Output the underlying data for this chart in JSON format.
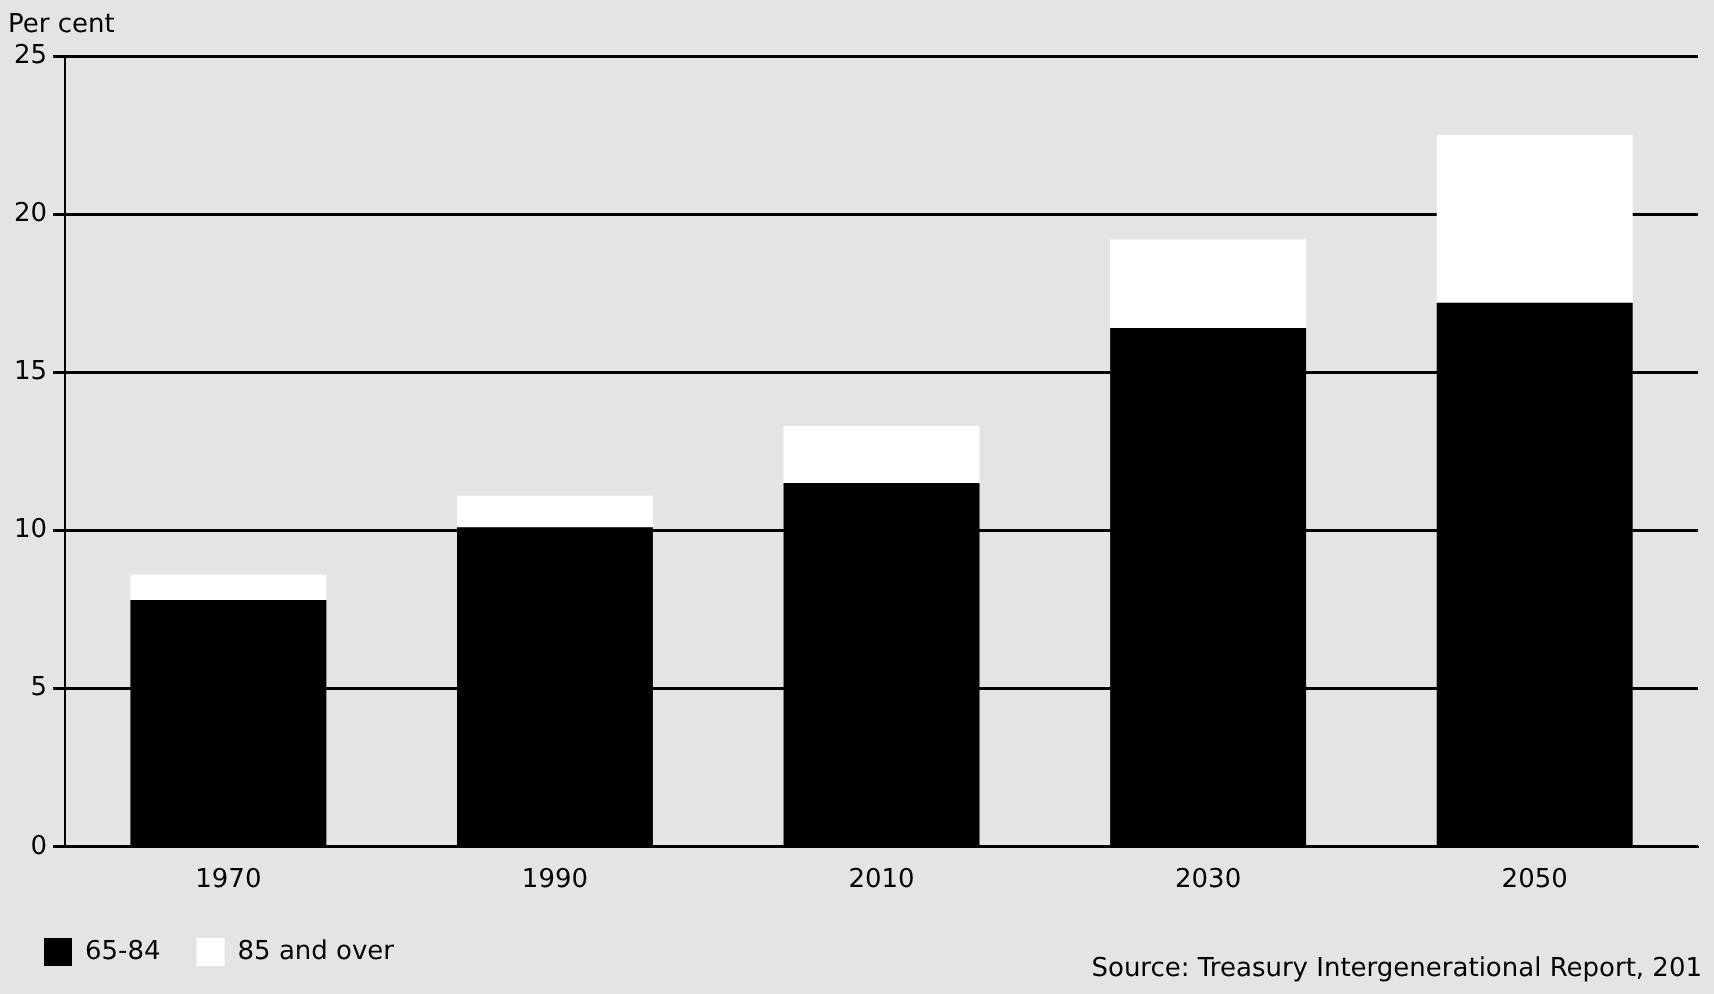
{
  "chart_data": {
    "type": "bar",
    "ylabel": "Per cent",
    "categories": [
      "1970",
      "1990",
      "2010",
      "2030",
      "2050"
    ],
    "stacked": true,
    "series": [
      {
        "name": "65-84",
        "color": "#000000",
        "values": [
          7.8,
          10.1,
          11.5,
          16.4,
          17.2
        ]
      },
      {
        "name": "85 and over",
        "color": "#ffffff",
        "values": [
          0.8,
          1.0,
          1.8,
          2.8,
          5.3
        ]
      }
    ],
    "ylim": [
      0,
      25
    ],
    "yticks": [
      0,
      5,
      10,
      15,
      20,
      25
    ],
    "grid": "y",
    "legend": "bottom left",
    "annotations": [
      "Source: Treasury Intergenerational Report, 201"
    ]
  }
}
